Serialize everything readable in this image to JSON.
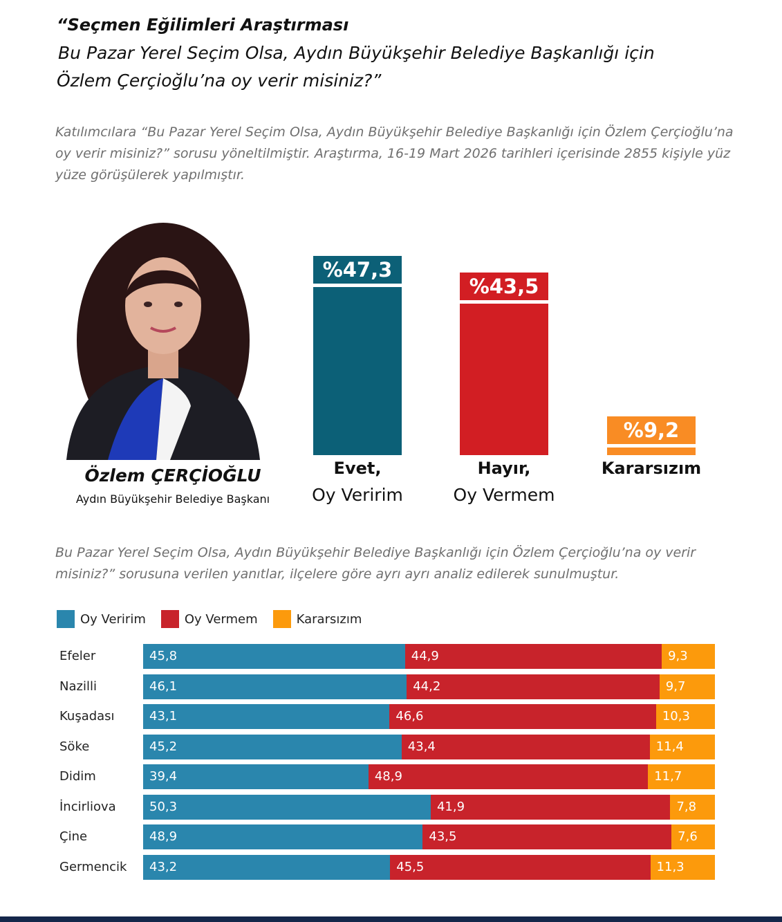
{
  "header": {
    "line1": "“Seçmen Eğilimleri Araştırması",
    "line2": "Bu Pazar Yerel Seçim Olsa, Aydın Büyükşehir Belediye Başkanlığı için",
    "line3": "Özlem Çerçioğlu’na oy verir misiniz?”"
  },
  "intro": "Katılımcılara “Bu Pazar Yerel Seçim Olsa, Aydın Büyükşehir Belediye Başkanlığı için Özlem Çerçioğlu’na oy verir misiniz?” sorusu yöneltilmiştir. Araştırma, 16-19 Mart 2026 tarihleri içerisinde 2855 kişiyle yüz yüze görüşülerek yapılmıştır.",
  "person": {
    "name": "Özlem ÇERÇİOĞLU",
    "title": "Aydın Büyükşehir Belediye Başkanı"
  },
  "district_intro": "Bu Pazar Yerel Seçim Olsa, Aydın Büyükşehir Belediye Başkanlığı için Özlem Çerçioğlu’na oy verir misiniz?” sorusuna verilen yanıtlar, ilçelere göre ayrı ayrı analiz edilerek sunulmuştur.",
  "colors": {
    "yes_main": "#0c6077",
    "no_main": "#d21e23",
    "undecided_main": "#f98c24",
    "yes": "#2a86ad",
    "no": "#c8232b",
    "undecided": "#fc9a0c"
  },
  "chart_data": [
    {
      "type": "bar",
      "categories": [
        "Evet, Oy Veririm",
        "Hayır, Oy Vermem",
        "Kararsızım"
      ],
      "category_lines": [
        [
          "Evet,",
          "Oy Veririm"
        ],
        [
          "Hayır,",
          "Oy Vermem"
        ],
        [
          "Kararsızım",
          ""
        ]
      ],
      "values": [
        47.3,
        43.5,
        9.2
      ],
      "value_labels": [
        "%47,3",
        "%43,5",
        "%9,2"
      ]
    },
    {
      "type": "bar",
      "orientation": "horizontal",
      "stacked": true,
      "legend": [
        "Oy Veririm",
        "Oy Vermem",
        "Kararsızım"
      ],
      "categories": [
        "Efeler",
        "Nazilli",
        "Kuşadası",
        "Söke",
        "Didim",
        "İncirliova",
        "Çine",
        "Germencik"
      ],
      "series": [
        {
          "name": "Oy Veririm",
          "values": [
            45.8,
            46.1,
            43.1,
            45.2,
            39.4,
            50.3,
            48.9,
            43.2
          ],
          "labels": [
            "45,8",
            "46,1",
            "43,1",
            "45,2",
            "39,4",
            "50,3",
            "48,9",
            "43,2"
          ]
        },
        {
          "name": "Oy Vermem",
          "values": [
            44.9,
            44.2,
            46.6,
            43.4,
            48.9,
            41.9,
            43.5,
            45.5
          ],
          "labels": [
            "44,9",
            "44,2",
            "46,6",
            "43,4",
            "48,9",
            "41,9",
            "43,5",
            "45,5"
          ]
        },
        {
          "name": "Kararsızım",
          "values": [
            9.3,
            9.7,
            10.3,
            11.4,
            11.7,
            7.8,
            7.6,
            11.3
          ],
          "labels": [
            "9,3",
            "9,7",
            "10,3",
            "11,4",
            "11,7",
            "7,8",
            "7,6",
            "11,3"
          ]
        }
      ]
    }
  ]
}
